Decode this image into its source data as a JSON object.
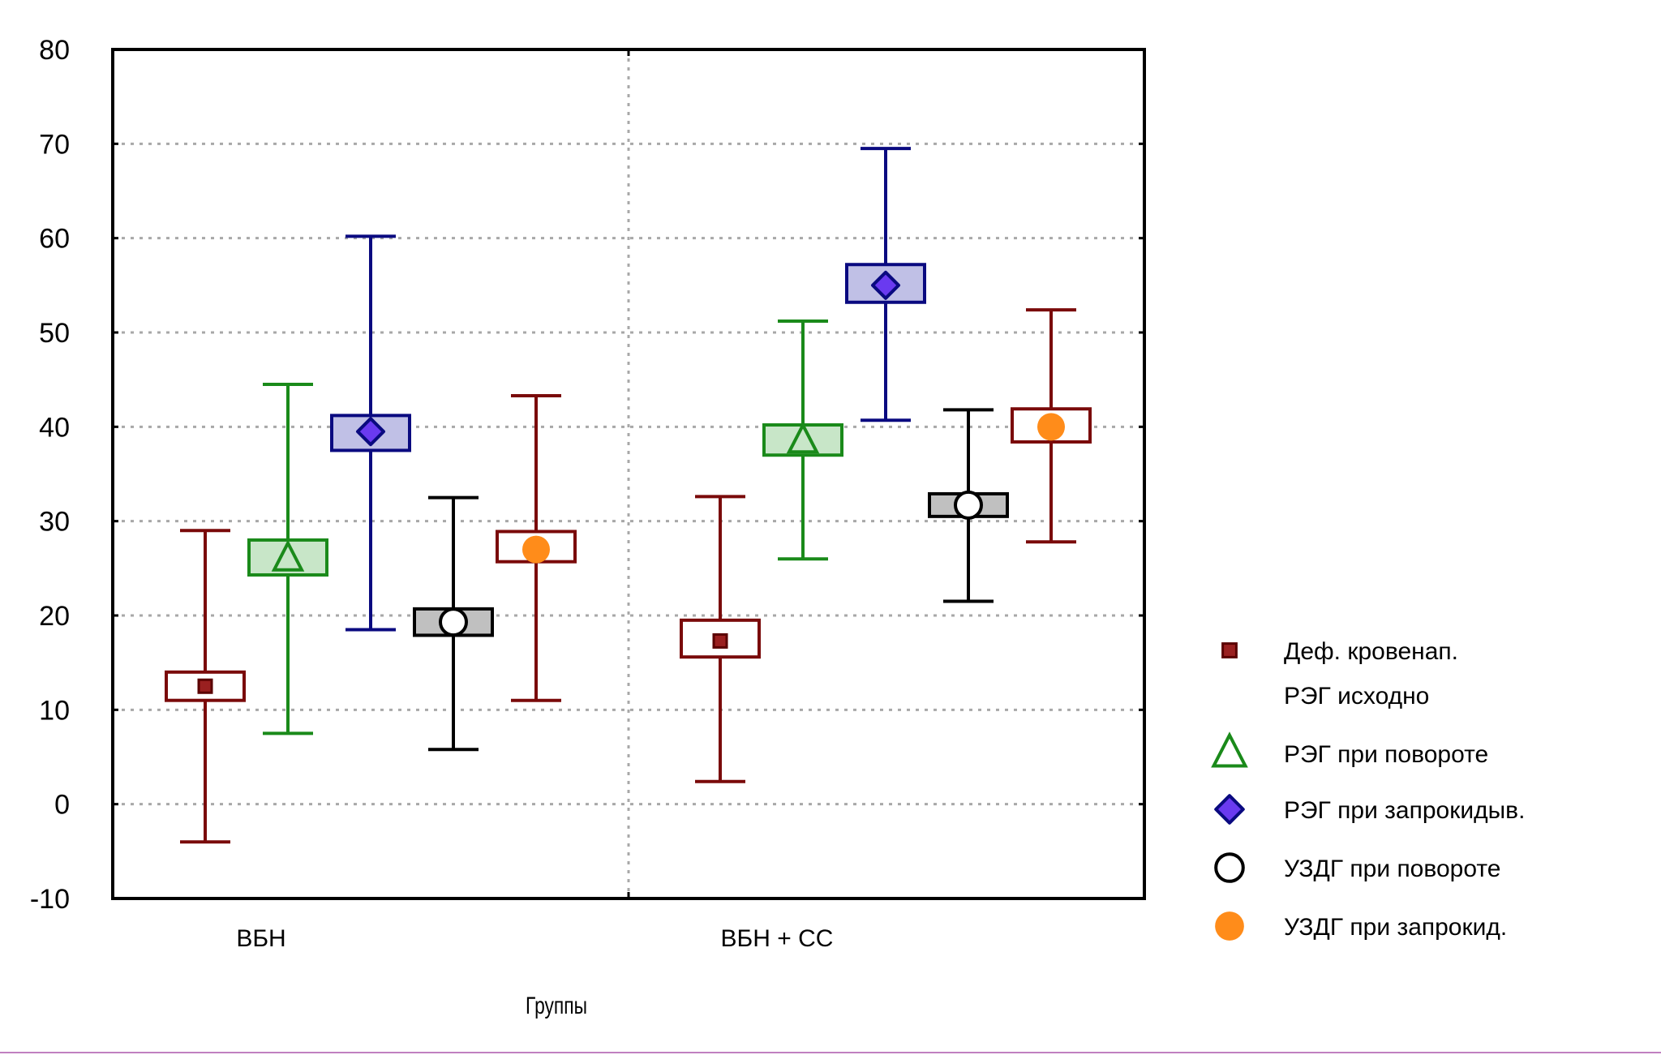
{
  "chart_data": {
    "type": "box",
    "xlabel": "Группы",
    "ylabel": "",
    "ylim": [
      -10,
      80
    ],
    "yticks": [
      -10,
      0,
      10,
      20,
      30,
      40,
      50,
      60,
      70,
      80
    ],
    "grid": true,
    "legend_position": "right",
    "categories": [
      "ВБН",
      "ВБН + СС"
    ],
    "series": [
      {
        "name_lines": [
          "Деф. кровенап.",
          "РЭГ исходно"
        ],
        "marker": "square",
        "color": "#7a0a0a",
        "box_fill": "#ffffff",
        "values": [
          {
            "mean": 12.5,
            "box": [
              11,
              14
            ],
            "whisker": [
              -4,
              29
            ]
          },
          {
            "mean": 17.3,
            "box": [
              15.6,
              19.5
            ],
            "whisker": [
              2.4,
              32.6
            ]
          }
        ]
      },
      {
        "name_lines": [
          "РЭГ при повороте"
        ],
        "marker": "triangle",
        "color": "#1a8a1a",
        "box_fill": "#c8e6c8",
        "values": [
          {
            "mean": 26,
            "box": [
              24.3,
              28
            ],
            "whisker": [
              7.5,
              44.5
            ]
          },
          {
            "mean": 38.5,
            "box": [
              37,
              40.2
            ],
            "whisker": [
              26,
              51.2
            ]
          }
        ]
      },
      {
        "name_lines": [
          "РЭГ при запрокидыв."
        ],
        "marker": "diamond",
        "color": "#0a0a80",
        "box_fill": "#c0c0e6",
        "values": [
          {
            "mean": 39.5,
            "box": [
              37.5,
              41.2
            ],
            "whisker": [
              18.5,
              60.2
            ]
          },
          {
            "mean": 55,
            "box": [
              53.2,
              57.2
            ],
            "whisker": [
              40.7,
              69.5
            ]
          }
        ]
      },
      {
        "name_lines": [
          "УЗДГ при повороте"
        ],
        "marker": "circle-open",
        "color": "#000000",
        "box_fill": "#c0c0c0",
        "values": [
          {
            "mean": 19.3,
            "box": [
              17.9,
              20.7
            ],
            "whisker": [
              5.8,
              32.5
            ]
          },
          {
            "mean": 31.7,
            "box": [
              30.5,
              32.9
            ],
            "whisker": [
              21.5,
              41.8
            ]
          }
        ]
      },
      {
        "name_lines": [
          "УЗДГ при запрокид."
        ],
        "marker": "circle-filled",
        "color": "#7a0a0a",
        "marker_color": "#ff8c1a",
        "box_fill": "#ffffff",
        "values": [
          {
            "mean": 27,
            "box": [
              25.7,
              28.9
            ],
            "whisker": [
              11,
              43.3
            ]
          },
          {
            "mean": 40,
            "box": [
              38.4,
              41.9
            ],
            "whisker": [
              27.8,
              52.4
            ]
          }
        ]
      }
    ]
  }
}
